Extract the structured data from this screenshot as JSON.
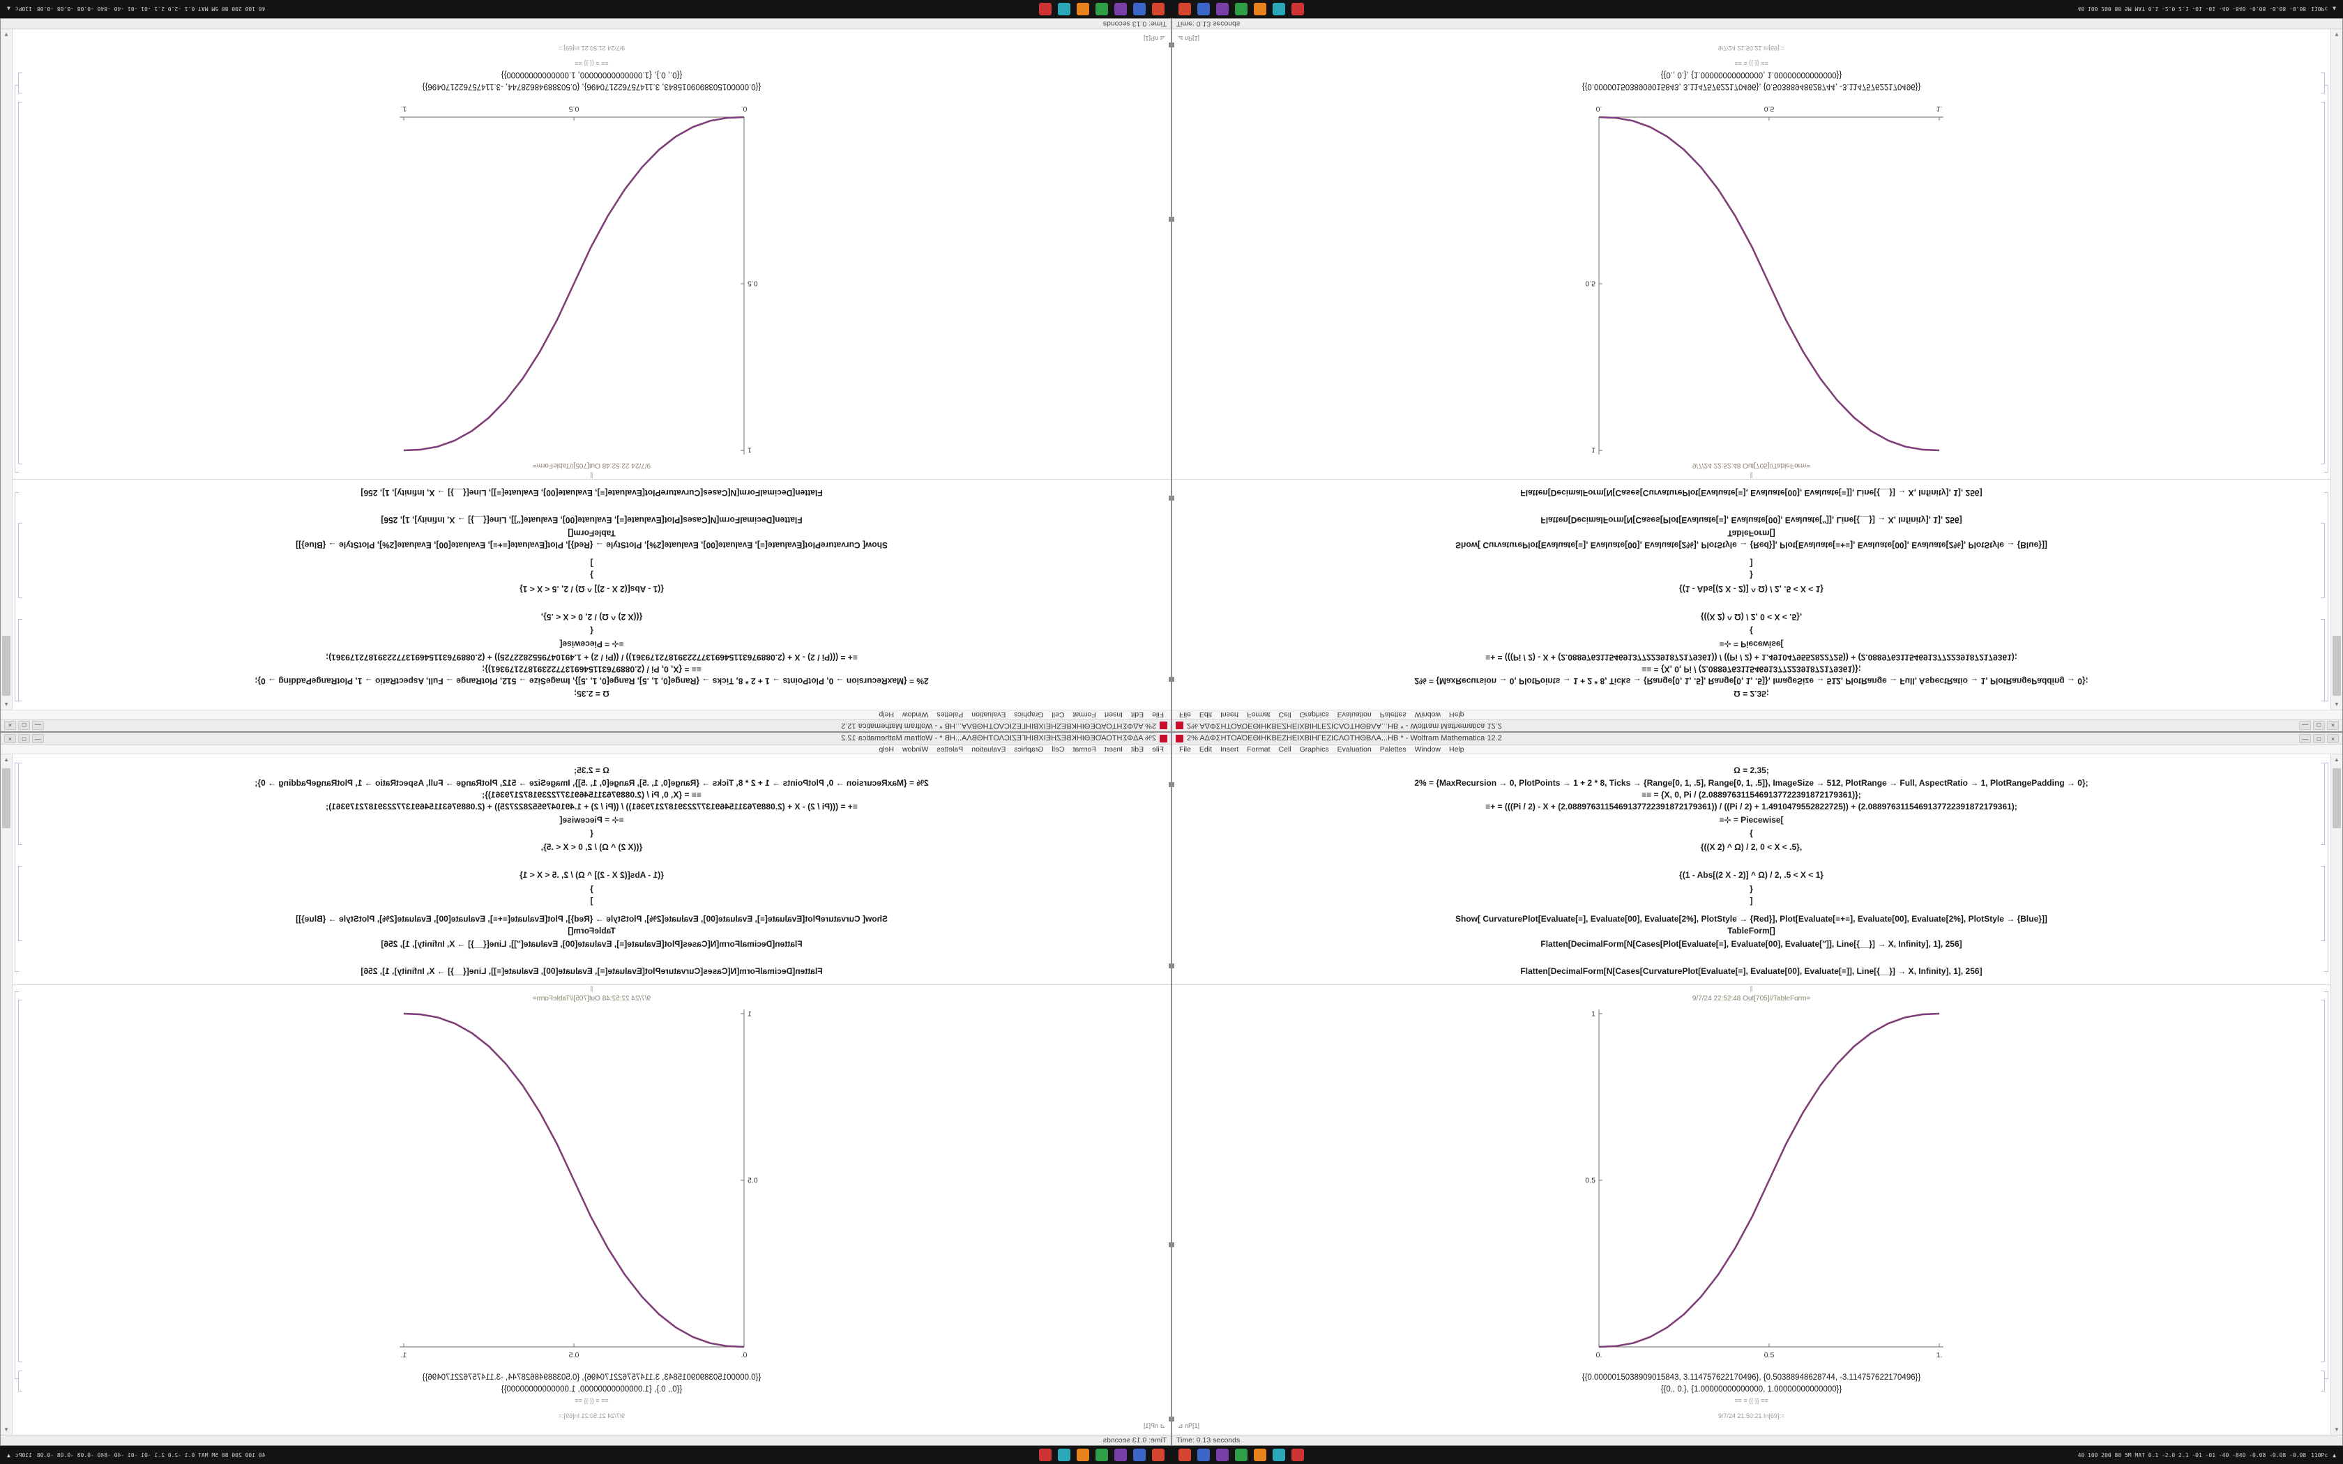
{
  "app": {
    "name": "Wolfram Mathematica",
    "version": "12.2"
  },
  "window": {
    "title": "2% ΑΔΦΣΗΤΟΑΌΕΘΙΗΚΒΕΖΗΕΙΧΒΙΗΓΕΖΙCΛΟΤΗΘΒΛΑ...ΗΒ * - Wolfram Mathematica 12.2",
    "controls": {
      "minimize": "—",
      "maximize": "□",
      "close": "×"
    }
  },
  "menu": {
    "items": [
      "File",
      "Edit",
      "Insert",
      "Format",
      "Cell",
      "Graphics",
      "Evaluation",
      "Palettes",
      "Window",
      "Help"
    ]
  },
  "notebook": {
    "in_lines": [
      "Ω = 2.35;",
      "2% = {MaxRecursion → 0, PlotPoints → 1 + 2 * 8, Ticks → {Range[0, 1, .5], Range[0, 1, .5]}, ImageSize → 512, PlotRange → Full, AspectRatio → 1, PlotRangePadding → 0};",
      "≡≡ = {X, 0, Pi / (2.0889763115469137722391872179361)};",
      "≡+ = (((Pi / 2) - X + (2.0889763115469137722391872179361)) / ((Pi / 2) + 1.4910479552822725)) + (2.0889763115469137722391872179361);",
      "≡⊹ = Piecewise[",
      "{",
      "{((X 2) ^ Ω) / 2, 0 < X < .5},",
      "{(1 - Abs[(2 X - 2)] ^ Ω) / 2, .5 < X < 1}",
      "}",
      "]",
      "Show[  CurvaturePlot[Evaluate[≡], Evaluate[00], Evaluate[2%], PlotStyle → {Red}],   Plot[Evaluate[≡+≡], Evaluate[00], Evaluate[2%], PlotStyle → {Blue}]]",
      "TableForm[]",
      "Flatten[DecimalForm[N[Cases[Plot[Evaluate[≡], Evaluate[00], Evaluate[″]], Line[{__}] → X, Infinity], 1], 256]",
      "Flatten[DecimalForm[N[Cases[CurvaturePlot[Evaluate[≡], Evaluate[00], Evaluate[≡]], Line[{__}] → X, Infinity], 1], 256]"
    ],
    "group_divider": "∥",
    "out_label": "9/7/24 22:52:48 Out[705]//TableForm=",
    "out_lines": [
      "{{0.0000015038909015843, 3.114757622170496}, {0.50388948628744, -3.114757622170496}}",
      "{{0., 0.}, {1.00000000000000, 1.00000000000000}}"
    ],
    "small_lines": [
      "≡≡ ≡ {{∙}} ≡≡",
      "9/7/24 21:50:21 In[69]:="
    ],
    "insertion_label": "⊿ nP[1]"
  },
  "statusbar": {
    "text": "Time: 0.13 seconds"
  },
  "taskbar": {
    "icons": [
      {
        "name": "app-icon-red",
        "color": "#d6452f"
      },
      {
        "name": "app-icon-blue",
        "color": "#3a66c9"
      },
      {
        "name": "app-icon-purple",
        "color": "#7a3fa8"
      },
      {
        "name": "app-icon-green",
        "color": "#2f9e44"
      },
      {
        "name": "app-icon-orange",
        "color": "#e8821e"
      },
      {
        "name": "app-icon-teal",
        "color": "#2aa7b8"
      },
      {
        "name": "app-icon-crimson",
        "color": "#cf3434"
      }
    ],
    "tray_stats": "40 100 200 80 5M MAT 0.1 -2.0 2.1 -01 -01 -40 -840 -0.08 -0.08 -0.08",
    "tray_label": "110Pc",
    "tray_arrow": "▲"
  },
  "chart_data": {
    "type": "line",
    "title": "",
    "xlabel": "",
    "ylabel": "",
    "xlim": [
      0,
      1
    ],
    "ylim": [
      0,
      1
    ],
    "grid": false,
    "legend": "none",
    "x": [
      0,
      0.05,
      0.1,
      0.15,
      0.2,
      0.25,
      0.3,
      0.35,
      0.4,
      0.45,
      0.5,
      0.55,
      0.6,
      0.65,
      0.7,
      0.75,
      0.8,
      0.85,
      0.9,
      0.95,
      1
    ],
    "series": [
      {
        "name": "CurvaturePlot (Red)",
        "color": "#c0392b",
        "values": [
          0,
          0.0022,
          0.0114,
          0.0295,
          0.058,
          0.098,
          0.1506,
          0.2162,
          0.296,
          0.3903,
          0.5,
          0.6097,
          0.704,
          0.7838,
          0.8494,
          0.902,
          0.942,
          0.9705,
          0.9886,
          0.9978,
          1
        ]
      },
      {
        "name": "Plot (Blue)",
        "color": "#3f48cc",
        "values": [
          0,
          0.0022,
          0.0114,
          0.0295,
          0.058,
          0.098,
          0.1506,
          0.2162,
          0.296,
          0.3903,
          0.5,
          0.6097,
          0.704,
          0.7838,
          0.8494,
          0.902,
          0.942,
          0.9705,
          0.9886,
          0.9978,
          1
        ]
      }
    ],
    "xticks": [
      {
        "v": 0,
        "label": "0."
      },
      {
        "v": 0.5,
        "label": "0.5"
      },
      {
        "v": 1,
        "label": "1."
      }
    ],
    "yticks": [
      {
        "v": 0.5,
        "label": "0.5"
      },
      {
        "v": 1,
        "label": "1"
      }
    ]
  }
}
